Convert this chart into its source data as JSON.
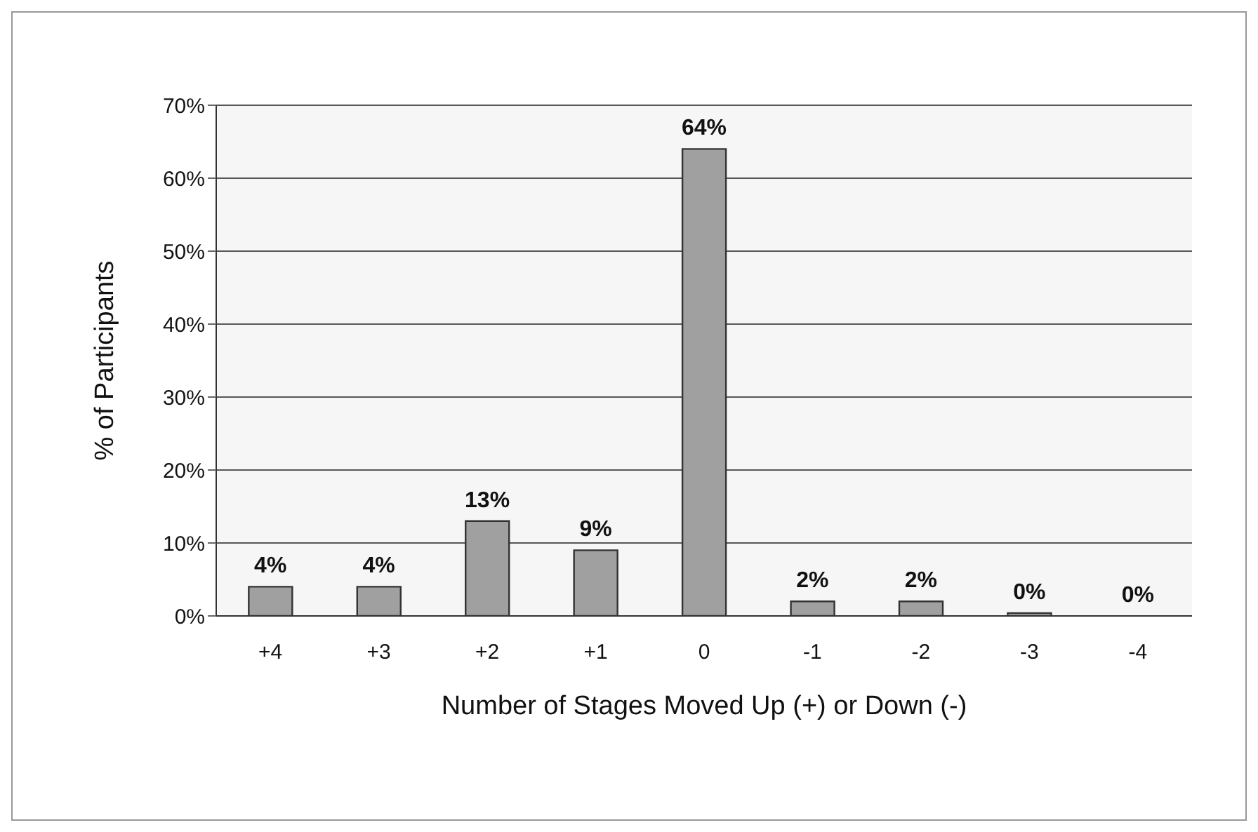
{
  "chart_data": {
    "type": "bar",
    "xlabel": "Number of Stages Moved Up (+) or Down (-)",
    "ylabel": "% of Participants",
    "categories": [
      "+4",
      "+3",
      "+2",
      "+1",
      "0",
      "-1",
      "-2",
      "-3",
      "-4"
    ],
    "values": [
      4,
      4,
      13,
      9,
      64,
      2,
      2,
      0.4,
      0
    ],
    "value_labels": [
      "4%",
      "4%",
      "13%",
      "9%",
      "64%",
      "2%",
      "2%",
      "0%",
      "0%"
    ],
    "color": "#a0a0a0",
    "ylim": [
      0,
      70
    ],
    "yticks": [
      {
        "value": 0,
        "label": "0%"
      },
      {
        "value": 10,
        "label": "10%"
      },
      {
        "value": 20,
        "label": "20%"
      },
      {
        "value": 30,
        "label": "30%"
      },
      {
        "value": 40,
        "label": "40%"
      },
      {
        "value": 50,
        "label": "50%"
      },
      {
        "value": 60,
        "label": "60%"
      },
      {
        "value": 70,
        "label": "70%"
      }
    ],
    "grid": "y",
    "legend": false
  }
}
